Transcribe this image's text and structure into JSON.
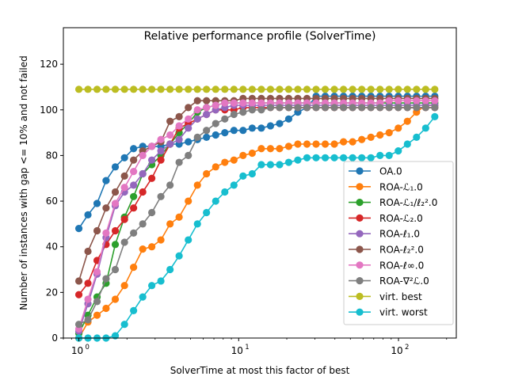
{
  "chart_data": {
    "type": "line",
    "title": "Relative performance profile (SolverTime)",
    "xlabel": "SolverTime at most this factor of best",
    "ylabel": "Number of instances with gap <= 10% and not failed",
    "xscale": "log",
    "xlim": [
      0.8,
      230
    ],
    "ylim": [
      0,
      136
    ],
    "x_ticks": [
      {
        "value": 1,
        "base": "10",
        "exp": "0"
      },
      {
        "value": 10,
        "base": "10",
        "exp": "1"
      },
      {
        "value": 100,
        "base": "10",
        "exp": "2"
      }
    ],
    "y_ticks": [
      0,
      20,
      40,
      60,
      80,
      100,
      120
    ],
    "grid": false,
    "legend_position": "lower-right",
    "x": [
      1.0,
      1.14,
      1.3,
      1.48,
      1.69,
      1.93,
      2.2,
      2.51,
      2.86,
      3.26,
      3.72,
      4.24,
      4.84,
      5.52,
      6.29,
      7.18,
      8.19,
      9.34,
      10.65,
      12.15,
      13.86,
      15.81,
      18.03,
      20.56,
      23.45,
      26.75,
      30.51,
      34.8,
      39.69,
      45.27,
      51.64,
      58.9,
      67.18,
      76.63,
      87.4,
      99.69,
      113.7,
      129.7,
      147.9,
      168.7
    ],
    "series": [
      {
        "name": "OA.0",
        "color": "#1f77b4",
        "values": [
          48,
          54,
          59,
          69,
          75,
          79,
          83,
          84,
          84,
          84,
          85,
          85,
          86,
          87,
          88,
          89,
          90,
          91,
          91,
          92,
          92,
          93,
          94,
          96,
          99,
          101,
          106,
          106,
          106,
          106,
          106,
          106,
          106,
          106,
          106,
          106,
          106,
          106,
          106,
          106
        ]
      },
      {
        "name": "ROA-ℒ₁.0",
        "color": "#ff7f0e",
        "values": [
          0,
          7,
          10,
          13,
          17,
          23,
          31,
          39,
          40,
          43,
          50,
          53,
          60,
          67,
          72,
          75,
          77,
          78,
          80,
          81,
          83,
          83,
          83,
          84,
          85,
          85,
          85,
          85,
          85,
          86,
          86,
          87,
          88,
          89,
          90,
          92,
          95,
          99,
          102,
          102
        ]
      },
      {
        "name": "ROA-ℒ₁/ℓ₂².0",
        "color": "#2ca02c",
        "values": [
          2,
          10,
          18,
          24,
          41,
          53,
          62,
          72,
          76,
          80,
          85,
          90,
          94,
          99,
          101,
          102,
          103,
          103,
          103,
          103,
          103,
          103,
          103,
          103,
          103,
          103,
          103,
          103,
          103,
          103,
          103,
          103,
          103,
          103,
          103,
          103,
          103,
          103,
          103,
          103
        ]
      },
      {
        "name": "ROA-ℒ₂.0",
        "color": "#d62728",
        "values": [
          19,
          24,
          34,
          41,
          47,
          52,
          57,
          64,
          70,
          78,
          85,
          92,
          94,
          96,
          98,
          100,
          100,
          100,
          101,
          101,
          101,
          101,
          101,
          101,
          101,
          101,
          101,
          101,
          101,
          101,
          101,
          101,
          101,
          101,
          101,
          101,
          101,
          101,
          101,
          101
        ]
      },
      {
        "name": "ROA-ℓ₁.0",
        "color": "#9467bd",
        "values": [
          3,
          15,
          28,
          44,
          58,
          64,
          67,
          72,
          78,
          82,
          85,
          87,
          92,
          96,
          98,
          100,
          101,
          102,
          102,
          102,
          102,
          102,
          102,
          102,
          102,
          102,
          102,
          102,
          102,
          102,
          102,
          102,
          102,
          102,
          102,
          102,
          102,
          102,
          102,
          102
        ]
      },
      {
        "name": "ROA-ℓ₂².0",
        "color": "#8c564b",
        "values": [
          25,
          38,
          47,
          57,
          64,
          71,
          78,
          82,
          84,
          86,
          95,
          97,
          101,
          104,
          104,
          104,
          104,
          104,
          105,
          105,
          105,
          105,
          105,
          105,
          105,
          105,
          105,
          105,
          105,
          105,
          105,
          105,
          105,
          105,
          105,
          105,
          105,
          105,
          105,
          105
        ]
      },
      {
        "name": "ROA-ℓ∞.0",
        "color": "#e377c2",
        "values": [
          4,
          17,
          29,
          46,
          59,
          66,
          73,
          80,
          84,
          87,
          89,
          93,
          96,
          100,
          101,
          102,
          103,
          103,
          103,
          103,
          103,
          103,
          103,
          103,
          103,
          103,
          103,
          103,
          103,
          103,
          103,
          103,
          103,
          103,
          104,
          104,
          104,
          104,
          104,
          104
        ]
      },
      {
        "name": "ROA-∇²ℒ.0",
        "color": "#7f7f7f",
        "values": [
          6,
          8,
          16,
          26,
          30,
          42,
          46,
          50,
          55,
          62,
          67,
          77,
          80,
          88,
          91,
          94,
          96,
          98,
          99,
          100,
          100,
          101,
          101,
          101,
          101,
          101,
          101,
          101,
          101,
          101,
          101,
          101,
          101,
          101,
          101,
          101,
          101,
          101,
          101,
          101
        ]
      },
      {
        "name": "virt. best",
        "color": "#bcbd22",
        "values": [
          109,
          109,
          109,
          109,
          109,
          109,
          109,
          109,
          109,
          109,
          109,
          109,
          109,
          109,
          109,
          109,
          109,
          109,
          109,
          109,
          109,
          109,
          109,
          109,
          109,
          109,
          109,
          109,
          109,
          109,
          109,
          109,
          109,
          109,
          109,
          109,
          109,
          109,
          109,
          109
        ]
      },
      {
        "name": "virt. worst",
        "color": "#17becf",
        "values": [
          0,
          0,
          0,
          0,
          1,
          6,
          12,
          18,
          23,
          25,
          30,
          36,
          43,
          50,
          55,
          60,
          64,
          67,
          71,
          72,
          76,
          76,
          76,
          77,
          78,
          79,
          79,
          79,
          79,
          79,
          79,
          79,
          79,
          80,
          80,
          82,
          85,
          88,
          92,
          97
        ]
      }
    ]
  }
}
